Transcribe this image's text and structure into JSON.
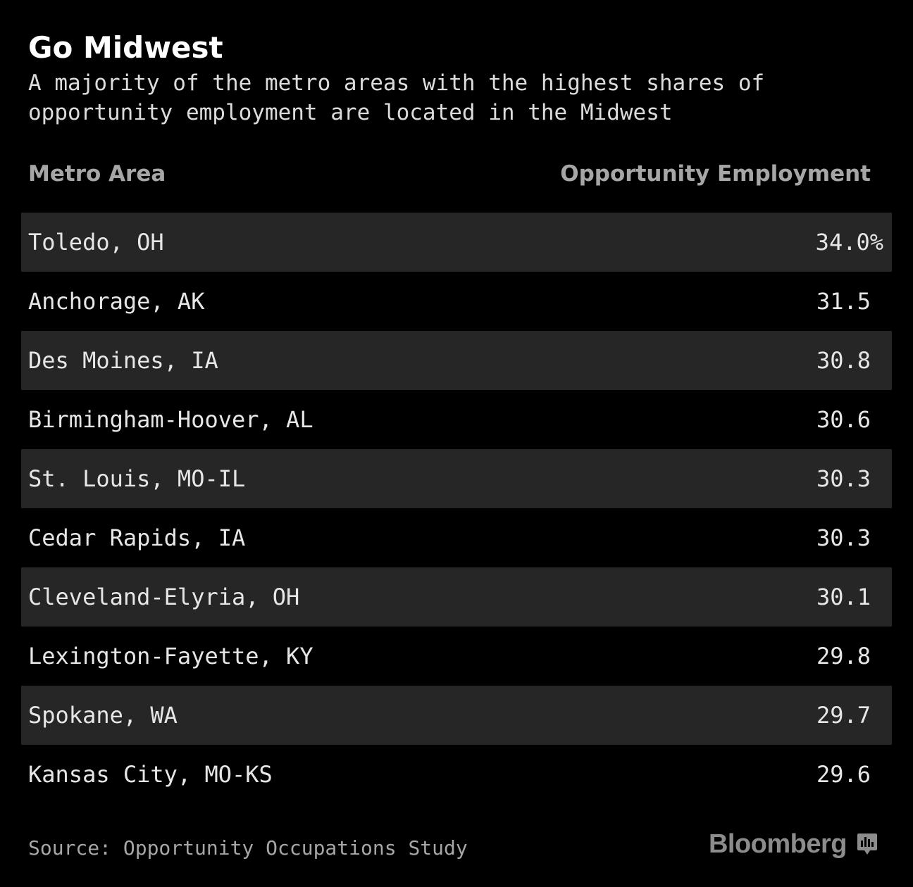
{
  "title": "Go Midwest",
  "subtitle": "A majority of the metro areas with the highest shares of opportunity employment are located in the Midwest",
  "source": "Source: Opportunity Occupations Study",
  "logo_text": "Bloomberg",
  "colors": {
    "background": "#000000",
    "row_shade": "#262626",
    "header_text": "#a6a6a6",
    "body_text": "#e6e6e6"
  },
  "chart_data": {
    "type": "table",
    "columns": [
      "Metro Area",
      "Opportunity Employment"
    ],
    "rows": [
      {
        "metro": "Toledo, OH",
        "value": "34.0%"
      },
      {
        "metro": "Anchorage, AK",
        "value": "31.5"
      },
      {
        "metro": "Des Moines, IA",
        "value": "30.8"
      },
      {
        "metro": "Birmingham-Hoover, AL",
        "value": "30.6"
      },
      {
        "metro": "St. Louis, MO-IL",
        "value": "30.3"
      },
      {
        "metro": "Cedar Rapids, IA",
        "value": "30.3"
      },
      {
        "metro": "Cleveland-Elyria, OH",
        "value": "30.1"
      },
      {
        "metro": "Lexington-Fayette, KY",
        "value": "29.8"
      },
      {
        "metro": "Spokane, WA",
        "value": "29.7"
      },
      {
        "metro": "Kansas City, MO-KS",
        "value": "29.6"
      }
    ]
  }
}
